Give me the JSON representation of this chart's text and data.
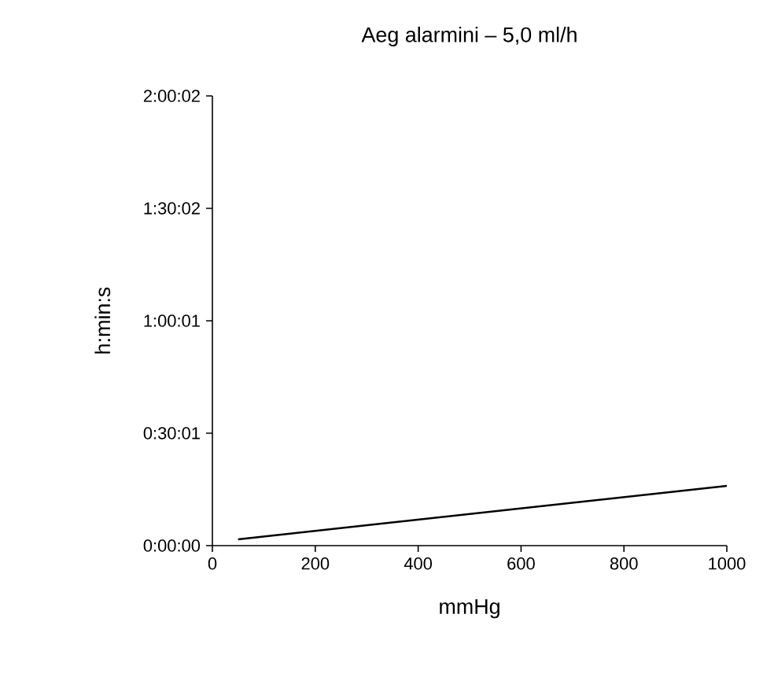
{
  "chart_data": {
    "type": "line",
    "title": "Aeg alarmini – 5,0 ml/h",
    "xlabel": "mmHg",
    "ylabel": "h:min:s",
    "x": [
      50,
      1000
    ],
    "series": [
      {
        "color": "#000000",
        "values": [
          0.028,
          0.266
        ]
      }
    ],
    "xlim": [
      0,
      1000
    ],
    "xticks": [
      0,
      200,
      400,
      600,
      800,
      1000
    ],
    "ylim": [
      0,
      2.0006
    ],
    "yticks": [
      {
        "value": 0,
        "label": "0:00:00"
      },
      {
        "value": 0.5003,
        "label": "0:30:01"
      },
      {
        "value": 1.0003,
        "label": "1:00:01"
      },
      {
        "value": 1.5006,
        "label": "1:30:02"
      },
      {
        "value": 2.0006,
        "label": "2:00:02"
      }
    ],
    "grid": false,
    "marker": "none",
    "line_style": "solid"
  }
}
